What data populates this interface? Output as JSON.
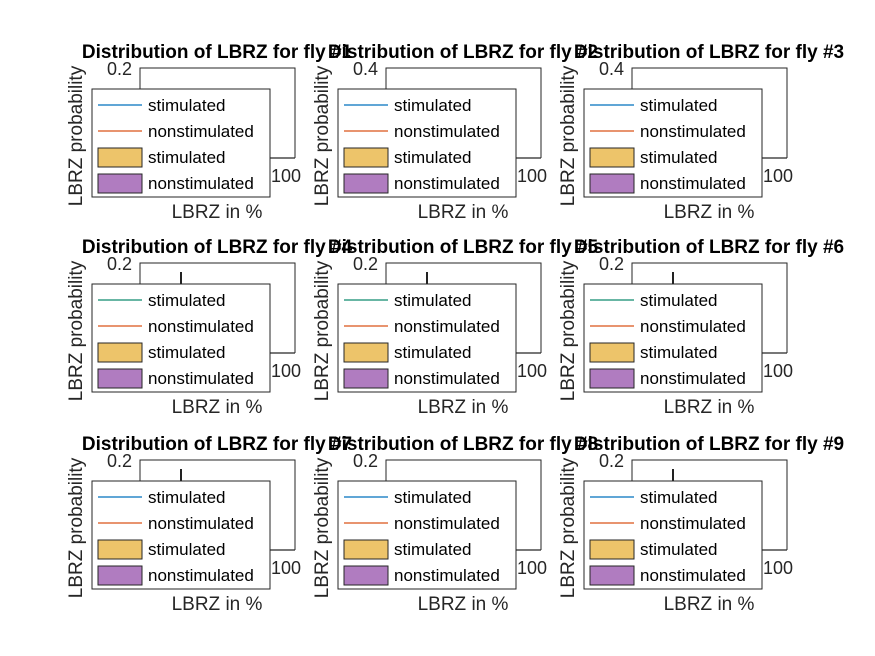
{
  "chart_data": [
    {
      "type": "histogram",
      "title": "Distribution of LBRZ for fly #1",
      "xlabel": "LBRZ in %",
      "ylabel": "LBRZ probability",
      "y_tick_top": "0.2",
      "x_tick_right": "100",
      "has_spike": false,
      "legend": [
        "stimulated",
        "nonstimulated",
        "stimulated",
        "nonstimulated"
      ],
      "legend_line_colors": [
        "#0072BD",
        "#D95319"
      ],
      "legend_patch_colors": [
        "#EDC46A",
        "#B07CC0"
      ]
    },
    {
      "type": "histogram",
      "title": "Distribution of LBRZ for fly #2",
      "xlabel": "LBRZ in %",
      "ylabel": "LBRZ probability",
      "y_tick_top": "0.4",
      "x_tick_right": "100",
      "has_spike": false,
      "legend": [
        "stimulated",
        "nonstimulated",
        "stimulated",
        "nonstimulated"
      ],
      "legend_line_colors": [
        "#0072BD",
        "#D95319"
      ],
      "legend_patch_colors": [
        "#EDC46A",
        "#B07CC0"
      ]
    },
    {
      "type": "histogram",
      "title": "Distribution of LBRZ for fly #3",
      "xlabel": "LBRZ in %",
      "ylabel": "LBRZ probability",
      "y_tick_top": "0.4",
      "x_tick_right": "100",
      "has_spike": false,
      "legend": [
        "stimulated",
        "nonstimulated",
        "stimulated",
        "nonstimulated"
      ],
      "legend_line_colors": [
        "#0072BD",
        "#D95319"
      ],
      "legend_patch_colors": [
        "#EDC46A",
        "#B07CC0"
      ]
    },
    {
      "type": "histogram",
      "title": "Distribution of LBRZ for fly #4",
      "xlabel": "LBRZ in %",
      "ylabel": "LBRZ probability",
      "y_tick_top": "0.2",
      "x_tick_right": "100",
      "has_spike": true,
      "legend": [
        "stimulated",
        "nonstimulated",
        "stimulated",
        "nonstimulated"
      ],
      "legend_line_colors": [
        "#0F8A6E",
        "#D95319"
      ],
      "legend_patch_colors": [
        "#EDC46A",
        "#B07CC0"
      ]
    },
    {
      "type": "histogram",
      "title": "Distribution of LBRZ for fly #5",
      "xlabel": "LBRZ in %",
      "ylabel": "LBRZ probability",
      "y_tick_top": "0.2",
      "x_tick_right": "100",
      "has_spike": true,
      "legend": [
        "stimulated",
        "nonstimulated",
        "stimulated",
        "nonstimulated"
      ],
      "legend_line_colors": [
        "#0F8A6E",
        "#D95319"
      ],
      "legend_patch_colors": [
        "#EDC46A",
        "#B07CC0"
      ]
    },
    {
      "type": "histogram",
      "title": "Distribution of LBRZ for fly #6",
      "xlabel": "LBRZ in %",
      "ylabel": "LBRZ probability",
      "y_tick_top": "0.2",
      "x_tick_right": "100",
      "has_spike": true,
      "legend": [
        "stimulated",
        "nonstimulated",
        "stimulated",
        "nonstimulated"
      ],
      "legend_line_colors": [
        "#0F8A6E",
        "#D95319"
      ],
      "legend_patch_colors": [
        "#EDC46A",
        "#B07CC0"
      ]
    },
    {
      "type": "histogram",
      "title": "Distribution of LBRZ for fly #7",
      "xlabel": "LBRZ in %",
      "ylabel": "LBRZ probability",
      "y_tick_top": "0.2",
      "x_tick_right": "100",
      "has_spike": true,
      "legend": [
        "stimulated",
        "nonstimulated",
        "stimulated",
        "nonstimulated"
      ],
      "legend_line_colors": [
        "#0072BD",
        "#D95319"
      ],
      "legend_patch_colors": [
        "#EDC46A",
        "#B07CC0"
      ]
    },
    {
      "type": "histogram",
      "title": "Distribution of LBRZ for fly #8",
      "xlabel": "LBRZ in %",
      "ylabel": "LBRZ probability",
      "y_tick_top": "0.2",
      "x_tick_right": "100",
      "has_spike": false,
      "legend": [
        "stimulated",
        "nonstimulated",
        "stimulated",
        "nonstimulated"
      ],
      "legend_line_colors": [
        "#0072BD",
        "#D95319"
      ],
      "legend_patch_colors": [
        "#EDC46A",
        "#B07CC0"
      ]
    },
    {
      "type": "histogram",
      "title": "Distribution of LBRZ for fly #9",
      "xlabel": "LBRZ in %",
      "ylabel": "LBRZ probability",
      "y_tick_top": "0.2",
      "x_tick_right": "100",
      "has_spike": true,
      "legend": [
        "stimulated",
        "nonstimulated",
        "stimulated",
        "nonstimulated"
      ],
      "legend_line_colors": [
        "#0072BD",
        "#D95319"
      ],
      "legend_patch_colors": [
        "#EDC46A",
        "#B07CC0"
      ]
    }
  ]
}
